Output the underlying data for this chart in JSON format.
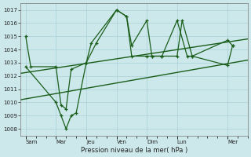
{
  "xlabel": "Pression niveau de la mer( hPa )",
  "ylim": [
    1007.5,
    1017.5
  ],
  "yticks": [
    1008,
    1009,
    1010,
    1011,
    1012,
    1013,
    1014,
    1015,
    1016,
    1017
  ],
  "bg_color": "#cce8eb",
  "grid_color": "#aacfd8",
  "line_color": "#1a5e1a",
  "days_labels": [
    "Sam",
    "Mar",
    "Jeu",
    "Ven",
    "Dim",
    "Lun",
    "Mer"
  ],
  "days_x": [
    0,
    6,
    12,
    18,
    24,
    30,
    40
  ],
  "xlim": [
    -1,
    44
  ],
  "minor_xtick_interval": 2,
  "line1_x": [
    0,
    1,
    6,
    7,
    8,
    9,
    12,
    13,
    18,
    20,
    21,
    24,
    25,
    27,
    30,
    32,
    33,
    40,
    41
  ],
  "line1_y": [
    1015.0,
    1012.7,
    1012.7,
    1009.8,
    1009.5,
    1012.5,
    1013.0,
    1014.5,
    1017.0,
    1016.5,
    1014.3,
    1016.2,
    1013.5,
    1013.5,
    1016.2,
    1013.5,
    1013.5,
    1014.7,
    1014.3
  ],
  "line2_x": [
    0,
    6,
    7,
    8,
    9,
    10,
    12,
    14,
    18,
    20,
    21,
    24,
    25,
    27,
    30,
    31,
    33,
    40,
    41
  ],
  "line2_y": [
    1012.7,
    1010.0,
    1009.0,
    1008.0,
    1009.0,
    1009.2,
    1013.0,
    1014.5,
    1017.0,
    1016.5,
    1013.5,
    1013.5,
    1013.5,
    1013.5,
    1013.5,
    1016.2,
    1013.5,
    1012.8,
    1014.3
  ],
  "trend1_x": [
    -1,
    44
  ],
  "trend1_y": [
    1012.2,
    1014.8
  ],
  "trend2_x": [
    -1,
    44
  ],
  "trend2_y": [
    1010.2,
    1013.2
  ]
}
